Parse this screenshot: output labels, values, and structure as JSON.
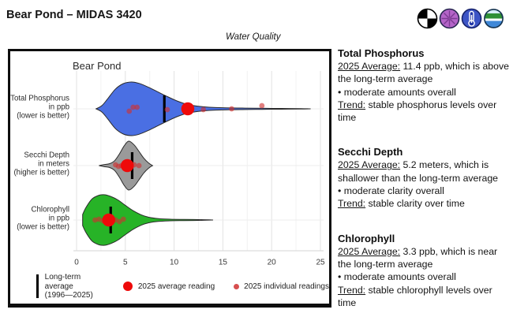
{
  "header": {
    "title": "Bear Pond – MIDAS 3420",
    "subtitle": "Water Quality"
  },
  "chart_data": {
    "type": "violin",
    "title": "Bear Pond",
    "x_axis": {
      "min": 0,
      "max": 25,
      "ticks": [
        0,
        5,
        10,
        15,
        20,
        25
      ],
      "minor": [
        2.5,
        7.5,
        12.5,
        17.5,
        22.5
      ],
      "label": ""
    },
    "legend_position": "bottom",
    "colors": {
      "avg_dot": "#ee0a0a",
      "individual_dot": "#d03030",
      "long_term_line": "#000000"
    },
    "legend": {
      "long_term_line1": "Long-term average",
      "long_term_line2": "(1996—2025)",
      "avg_label": "2025 average reading",
      "individual_label": "2025 individual readings"
    },
    "rows": [
      {
        "id": "total-phosphorus",
        "label_lines": [
          "Total Phosphorus",
          "in ppb",
          "(lower is better)"
        ],
        "color": "#4a6fe3",
        "long_term_avg": 9.0,
        "avg_2025": 11.4,
        "individual": [
          5.4,
          5.8,
          6.2,
          9.3,
          13.0,
          15.9,
          19.0
        ],
        "jitter": [
          3,
          -2,
          -2,
          1,
          1,
          0,
          -4
        ],
        "profile": [
          [
            2,
            0
          ],
          [
            2.6,
            0.12
          ],
          [
            3.2,
            0.38
          ],
          [
            4,
            0.74
          ],
          [
            4.8,
            0.94
          ],
          [
            5.6,
            1
          ],
          [
            6.4,
            0.95
          ],
          [
            7.4,
            0.8
          ],
          [
            8.4,
            0.62
          ],
          [
            9.4,
            0.44
          ],
          [
            10.4,
            0.28
          ],
          [
            11.4,
            0.16
          ],
          [
            12.4,
            0.1
          ],
          [
            13.6,
            0.06
          ],
          [
            15,
            0.04
          ],
          [
            17,
            0.028
          ],
          [
            19,
            0.02
          ],
          [
            21,
            0.014
          ],
          [
            23,
            0.008
          ],
          [
            24,
            0
          ]
        ]
      },
      {
        "id": "secchi-depth",
        "label_lines": [
          "Secchi Depth",
          "in meters",
          "(higher is better)"
        ],
        "color": "#9a9a9a",
        "long_term_avg": 5.7,
        "avg_2025": 5.2,
        "individual": [
          4.0,
          4.3,
          4.6,
          4.9,
          5.6,
          5.9,
          6.4
        ],
        "jitter": [
          -1,
          1,
          0,
          -2,
          1,
          -1,
          0
        ],
        "profile": [
          [
            2.3,
            0
          ],
          [
            2.8,
            0.04
          ],
          [
            3.4,
            0.08
          ],
          [
            3.9,
            0.2
          ],
          [
            4.4,
            0.48
          ],
          [
            4.9,
            0.82
          ],
          [
            5.35,
            1
          ],
          [
            5.9,
            0.85
          ],
          [
            6.4,
            0.58
          ],
          [
            6.9,
            0.3
          ],
          [
            7.4,
            0.1
          ],
          [
            7.8,
            0
          ]
        ]
      },
      {
        "id": "chlorophyll",
        "label_lines": [
          "Chlorophyll",
          "in ppb",
          "(lower is better)"
        ],
        "color": "#27b327",
        "long_term_avg": 3.5,
        "avg_2025": 3.3,
        "individual": [
          1.9,
          2.3,
          2.7,
          4.0,
          4.4,
          4.8
        ],
        "jitter": [
          0,
          -1,
          1,
          0,
          2,
          -1
        ],
        "profile": [
          [
            0.62,
            0.22
          ],
          [
            1,
            0.52
          ],
          [
            1.6,
            0.84
          ],
          [
            2.3,
            0.98
          ],
          [
            2.9,
            1
          ],
          [
            3.6,
            0.92
          ],
          [
            4.3,
            0.78
          ],
          [
            5,
            0.58
          ],
          [
            5.8,
            0.37
          ],
          [
            6.6,
            0.21
          ],
          [
            7.4,
            0.11
          ],
          [
            8.4,
            0.055
          ],
          [
            9.6,
            0.032
          ],
          [
            11,
            0.022
          ],
          [
            12.5,
            0.015
          ],
          [
            14,
            0
          ]
        ]
      }
    ]
  },
  "sections": [
    {
      "heading": "Total Phosphorus",
      "avg_label": "2025 Average:",
      "avg_text": " 11.4 ppb, which is above the long-term average",
      "bullet": "• moderate amounts overall",
      "trend_label": "Trend:",
      "trend_text": " stable phosphorus levels over time"
    },
    {
      "heading": "Secchi Depth",
      "avg_label": "2025 Average:",
      "avg_text": " 5.2 meters, which is shallower than the long-term average",
      "bullet": "• moderate clarity overall",
      "trend_label": "Trend:",
      "trend_text": " stable clarity over time"
    },
    {
      "heading": "Chlorophyll",
      "avg_label": "2025 Average:",
      "avg_text": " 3.3 ppb, which is near the long-term average",
      "bullet": "• moderate amounts overall",
      "trend_label": "Trend:",
      "trend_text": " stable chlorophyll levels over time"
    }
  ]
}
